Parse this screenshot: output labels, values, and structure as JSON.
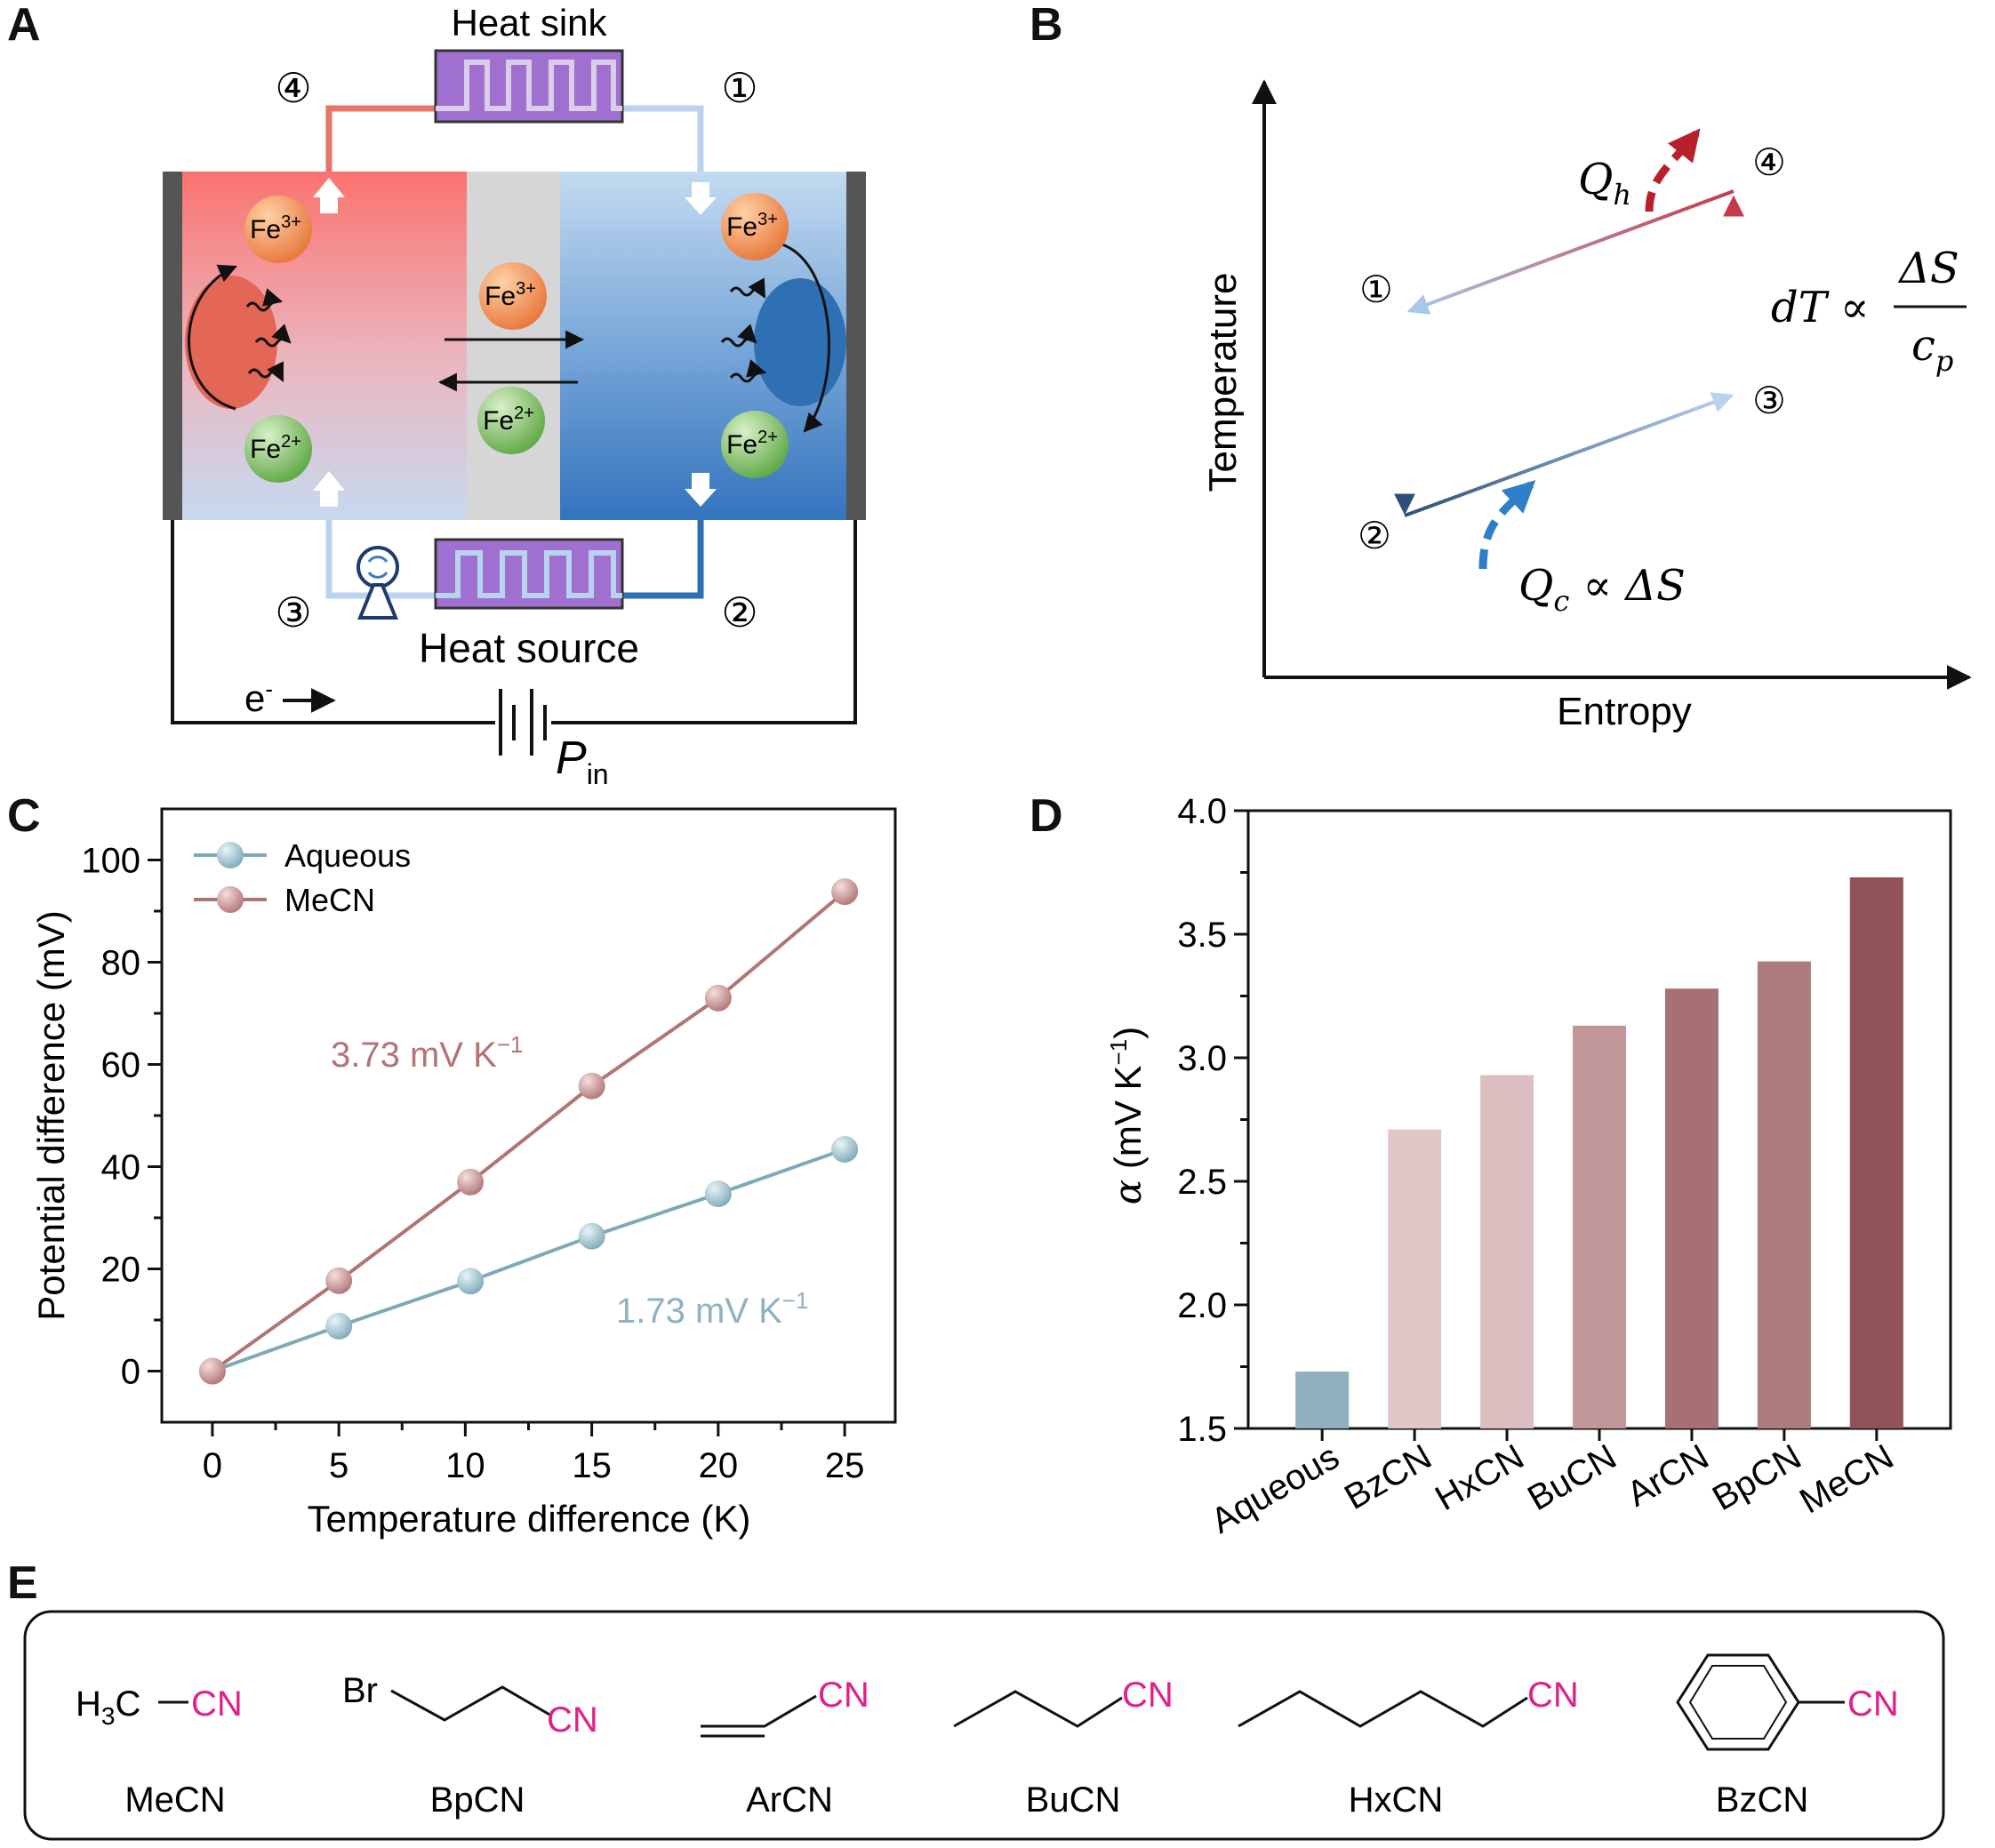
{
  "panels": {
    "a": "A",
    "b": "B",
    "c": "C",
    "d": "D",
    "e": "E"
  },
  "panel_a": {
    "heat_sink": "Heat sink",
    "heat_source": "Heat source",
    "step1": "①",
    "step2": "②",
    "step3": "③",
    "step4": "④",
    "fe3": "Fe",
    "fe3_sup": "3+",
    "fe2": "Fe",
    "fe2_sup": "2+",
    "electron": "e",
    "electron_sup": "-",
    "pin": "P",
    "pin_sub": "in",
    "colors": {
      "hot": "#f47a72",
      "cold": "#2f6fb3",
      "membrane": "#d6d6d6",
      "exchanger": "#a070d0"
    }
  },
  "panel_b": {
    "xlabel": "Entropy",
    "ylabel": "Temperature",
    "p1": "①",
    "p2": "②",
    "p3": "③",
    "p4": "④",
    "qh": "Q",
    "qh_sub": "h",
    "qc": "Q",
    "qc_sub": "c",
    "qc_rest": " ∝ ΔS",
    "dt": "dT ∝",
    "dt_num": "ΔS",
    "dt_den": "c",
    "dt_den_sub": "p"
  },
  "chart_data": [
    {
      "type": "line",
      "xlabel": "Temperature difference (K)",
      "ylabel": "Potential difference (mV)",
      "xlim": [
        -2,
        27
      ],
      "ylim": [
        -10,
        110
      ],
      "xticks": [
        0,
        5,
        10,
        15,
        20,
        25
      ],
      "yticks": [
        0,
        20,
        40,
        60,
        80,
        100
      ],
      "legend_position": "top-left",
      "series": [
        {
          "name": "Aqueous",
          "color": "#7ea9b8",
          "x": [
            0,
            5,
            10.2,
            15,
            20,
            25
          ],
          "y": [
            0,
            8.8,
            17.6,
            26.4,
            34.7,
            43.4
          ]
        },
        {
          "name": "MeCN",
          "color": "#b27474",
          "x": [
            0,
            5,
            10.2,
            15,
            20,
            25
          ],
          "y": [
            0,
            17.7,
            37.0,
            55.8,
            73.0,
            93.8
          ]
        }
      ],
      "annotations": [
        {
          "text": "3.73 mV K",
          "sup": "−1",
          "color": "#b27474"
        },
        {
          "text": "1.73 mV K",
          "sup": "−1",
          "color": "#8fb1c2"
        }
      ]
    },
    {
      "type": "bar",
      "ylabel_symbol": "α",
      "ylabel": "(mV K",
      "ylabel_sup": "−1",
      "ylabel_end": ")",
      "ylim": [
        1.5,
        4.0
      ],
      "yticks": [
        "1.5",
        "2.0",
        "2.5",
        "3.0",
        "3.5",
        "4.0"
      ],
      "categories": [
        "Aqueous",
        "BzCN",
        "HxCN",
        "BuCN",
        "ArCN",
        "BpCN",
        "MeCN"
      ],
      "values": [
        1.73,
        2.71,
        2.93,
        3.13,
        3.28,
        3.39,
        3.73
      ],
      "colors": [
        "#8fb1be",
        "#e1c6c8",
        "#dbbfc1",
        "#c19698",
        "#a77073",
        "#ab7b7d",
        "#915258"
      ]
    }
  ],
  "panel_e": {
    "mecn_formula": "H",
    "mecn_sub": "3",
    "mecn_c": "C",
    "cn": "CN",
    "br": "Br",
    "names": [
      "MeCN",
      "BpCN",
      "ArCN",
      "BuCN",
      "HxCN",
      "BzCN"
    ],
    "cn_color": "#e0208a"
  }
}
